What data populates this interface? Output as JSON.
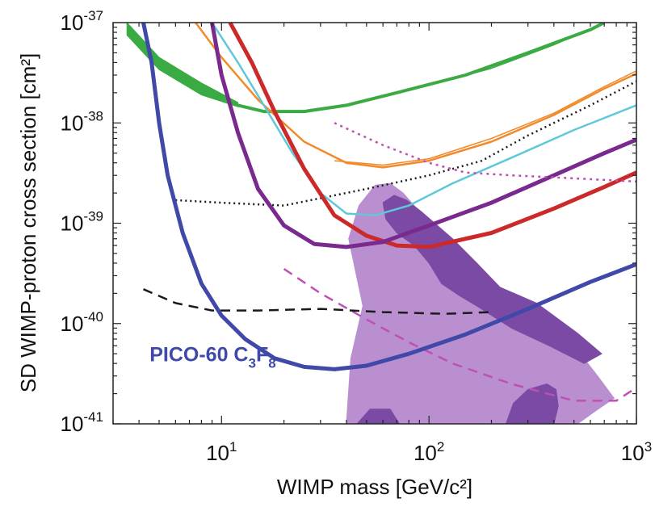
{
  "chart_data": {
    "type": "line",
    "x_scale": "log",
    "y_scale": "log",
    "xlim": [
      3,
      1000
    ],
    "ylim": [
      1e-41,
      1e-37
    ],
    "xlabel": "WIMP mass [GeV/c²]",
    "ylabel": "SD WIMP-proton cross section [cm²]",
    "x_ticks": [
      {
        "x": 10,
        "base": "10",
        "exp": "1"
      },
      {
        "x": 100,
        "base": "10",
        "exp": "2"
      },
      {
        "x": 1000,
        "base": "10",
        "exp": "3"
      }
    ],
    "y_ticks": [
      {
        "y": 1e-41,
        "base": "10",
        "exp": "-41"
      },
      {
        "y": 1e-40,
        "base": "10",
        "exp": "-40"
      },
      {
        "y": 1e-39,
        "base": "10",
        "exp": "-39"
      },
      {
        "y": 1e-38,
        "base": "10",
        "exp": "-38"
      },
      {
        "y": 1e-37,
        "base": "10",
        "exp": "-37"
      }
    ],
    "annotation": {
      "text": "PICO-60 C",
      "sub1": "3",
      "mid": "F",
      "sub2": "8",
      "color": "#4049a8",
      "x": 4.5,
      "y": 4.2e-41
    },
    "regions": [
      {
        "color": "#b98fd0",
        "points": [
          [
            40,
            1e-41
          ],
          [
            42,
            4.5e-41
          ],
          [
            48,
            1.5e-40
          ],
          [
            41,
            7e-40
          ],
          [
            46,
            1.5e-39
          ],
          [
            55,
            2.4e-39
          ],
          [
            65,
            2.5e-39
          ],
          [
            75,
            2e-39
          ],
          [
            90,
            1.3e-39
          ],
          [
            130,
            6e-40
          ],
          [
            160,
            3e-40
          ],
          [
            220,
            2e-40
          ],
          [
            350,
            1.1e-40
          ],
          [
            500,
            6e-41
          ],
          [
            650,
            3e-41
          ],
          [
            780,
            1.8e-41
          ],
          [
            620,
            1.3e-41
          ],
          [
            520,
            1e-41
          ]
        ]
      },
      {
        "color": "#7a4aa5",
        "points": [
          [
            60,
            1.6e-39
          ],
          [
            68,
            1.9e-39
          ],
          [
            78,
            1.7e-39
          ],
          [
            92,
            1.3e-39
          ],
          [
            130,
            7e-40
          ],
          [
            170,
            4e-40
          ],
          [
            220,
            2.3e-40
          ],
          [
            330,
            1.6e-40
          ],
          [
            520,
            8e-41
          ],
          [
            680,
            5e-41
          ],
          [
            560,
            4e-41
          ],
          [
            380,
            6e-41
          ],
          [
            250,
            9e-41
          ],
          [
            170,
            1.5e-40
          ],
          [
            140,
            1.9e-40
          ],
          [
            115,
            2.5e-40
          ],
          [
            100,
            4e-40
          ],
          [
            85,
            6e-40
          ],
          [
            70,
            8e-40
          ],
          [
            62,
            1.1e-39
          ]
        ]
      },
      {
        "color": "#7a4aa5",
        "points": [
          [
            235,
            1e-41
          ],
          [
            255,
            1.6e-41
          ],
          [
            300,
            2.2e-41
          ],
          [
            370,
            2.5e-41
          ],
          [
            410,
            2.2e-41
          ],
          [
            420,
            1.5e-41
          ],
          [
            400,
            1e-41
          ]
        ]
      },
      {
        "color": "#7a4aa5",
        "points": [
          [
            45,
            1e-41
          ],
          [
            52,
            1.4e-41
          ],
          [
            65,
            1.4e-41
          ],
          [
            72,
            1e-41
          ]
        ]
      }
    ],
    "bands": [
      {
        "color": "#3aaa42",
        "upper": [
          [
            3.5,
            1e-37
          ],
          [
            5,
            4.5e-38
          ],
          [
            8,
            2.5e-38
          ],
          [
            12,
            1.6e-38
          ]
        ],
        "lower": [
          [
            3.5,
            7.5e-38
          ],
          [
            5,
            3.4e-38
          ],
          [
            8,
            1.9e-38
          ],
          [
            12,
            1.45e-38
          ]
        ]
      }
    ],
    "series": [
      {
        "color": "#3aaa42",
        "width": 4,
        "dash": "",
        "points": [
          [
            12,
            1.5e-38
          ],
          [
            16,
            1.3e-38
          ],
          [
            25,
            1.3e-38
          ],
          [
            40,
            1.5e-38
          ],
          [
            70,
            2e-38
          ],
          [
            150,
            3e-38
          ],
          [
            300,
            5e-38
          ],
          [
            600,
            8.5e-38
          ],
          [
            700,
            1e-37
          ]
        ]
      },
      {
        "color": "#3aaa42",
        "width": 1.5,
        "dash": "",
        "points": [
          [
            110,
            2.5e-38
          ],
          [
            200,
            3.5e-38
          ],
          [
            400,
            6e-38
          ],
          [
            700,
            1e-37
          ]
        ]
      },
      {
        "color": "#f28a2a",
        "width": 2.5,
        "dash": "",
        "points": [
          [
            7.5,
            1e-37
          ],
          [
            10,
            4.5e-38
          ],
          [
            15,
            1.7e-38
          ],
          [
            25,
            6.5e-39
          ],
          [
            40,
            4e-39
          ],
          [
            60,
            3.6e-39
          ],
          [
            100,
            4.2e-39
          ],
          [
            200,
            6.5e-39
          ],
          [
            400,
            1.2e-38
          ],
          [
            700,
            2.2e-38
          ],
          [
            1000,
            3.1e-38
          ]
        ]
      },
      {
        "color": "#f28a2a",
        "width": 1.5,
        "dash": "",
        "points": [
          [
            35,
            4.2e-39
          ],
          [
            60,
            3.8e-39
          ],
          [
            100,
            4.4e-39
          ],
          [
            200,
            7e-39
          ],
          [
            400,
            1.25e-38
          ],
          [
            700,
            2.3e-38
          ],
          [
            1000,
            3.3e-38
          ]
        ]
      },
      {
        "color": "#1a1a1a",
        "width": 2.5,
        "dash": "2,4",
        "points": [
          [
            6,
            1.7e-39
          ],
          [
            10,
            1.6e-39
          ],
          [
            20,
            1.5e-39
          ],
          [
            50,
            2.2e-39
          ],
          [
            100,
            3e-39
          ],
          [
            180,
            4.2e-39
          ],
          [
            300,
            7.5e-39
          ],
          [
            600,
            1.5e-38
          ],
          [
            1000,
            2.6e-38
          ]
        ]
      },
      {
        "color": "#5fc8d8",
        "width": 2.5,
        "dash": "",
        "points": [
          [
            9,
            1e-37
          ],
          [
            12,
            4e-38
          ],
          [
            16,
            1.5e-38
          ],
          [
            22,
            5e-39
          ],
          [
            30,
            2e-39
          ],
          [
            40,
            1.25e-39
          ],
          [
            55,
            1.2e-39
          ],
          [
            80,
            1.5e-39
          ],
          [
            130,
            2.5e-39
          ],
          [
            250,
            4.5e-39
          ],
          [
            500,
            8.5e-39
          ],
          [
            1000,
            1.5e-38
          ]
        ]
      },
      {
        "color": "#cc2a2a",
        "width": 5,
        "dash": "",
        "points": [
          [
            11,
            1e-37
          ],
          [
            14,
            4e-38
          ],
          [
            18,
            1.3e-38
          ],
          [
            25,
            3.5e-39
          ],
          [
            35,
            1.2e-39
          ],
          [
            50,
            7.5e-40
          ],
          [
            70,
            6e-40
          ],
          [
            100,
            5.8e-40
          ],
          [
            200,
            8e-40
          ],
          [
            400,
            1.4e-39
          ],
          [
            700,
            2.3e-39
          ],
          [
            1000,
            3.2e-39
          ]
        ]
      },
      {
        "color": "#7a2a8e",
        "width": 5,
        "dash": "",
        "points": [
          [
            9,
            1e-37
          ],
          [
            10,
            3e-38
          ],
          [
            12,
            8e-39
          ],
          [
            15,
            2.2e-39
          ],
          [
            20,
            9.5e-40
          ],
          [
            28,
            6.2e-40
          ],
          [
            40,
            5.8e-40
          ],
          [
            60,
            6.5e-40
          ],
          [
            100,
            9.5e-40
          ],
          [
            200,
            1.6e-39
          ],
          [
            400,
            3e-39
          ],
          [
            700,
            5e-39
          ],
          [
            1000,
            6.8e-39
          ]
        ]
      },
      {
        "color": "#c04fb4",
        "width": 2.5,
        "dash": "3,5",
        "points": [
          [
            35,
            1e-38
          ],
          [
            60,
            6e-39
          ],
          [
            100,
            4e-39
          ],
          [
            150,
            3.2e-39
          ],
          [
            250,
            3e-39
          ],
          [
            500,
            2.8e-39
          ],
          [
            1000,
            2.6e-39
          ]
        ]
      },
      {
        "color": "#c04fb4",
        "width": 2.5,
        "dash": "12,8",
        "points": [
          [
            20,
            3.5e-40
          ],
          [
            30,
            2e-40
          ],
          [
            50,
            1.1e-40
          ],
          [
            80,
            6.5e-41
          ],
          [
            130,
            4e-41
          ],
          [
            250,
            2.5e-41
          ],
          [
            500,
            1.7e-41
          ],
          [
            800,
            1.7e-41
          ],
          [
            1000,
            2.3e-41
          ]
        ]
      },
      {
        "color": "#1a1a1a",
        "width": 2.5,
        "dash": "12,8",
        "points": [
          [
            4.2,
            2.2e-40
          ],
          [
            6,
            1.6e-40
          ],
          [
            9,
            1.35e-40
          ],
          [
            15,
            1.35e-40
          ],
          [
            30,
            1.4e-40
          ],
          [
            60,
            1.3e-40
          ],
          [
            120,
            1.25e-40
          ],
          [
            200,
            1.3e-40
          ]
        ]
      },
      {
        "color": "#4049a8",
        "width": 5,
        "dash": "",
        "points": [
          [
            4.2,
            1e-37
          ],
          [
            4.6,
            4e-38
          ],
          [
            5,
            1e-38
          ],
          [
            5.5,
            3e-39
          ],
          [
            6.5,
            8e-40
          ],
          [
            8,
            2.5e-40
          ],
          [
            10,
            1.2e-40
          ],
          [
            13,
            7e-41
          ],
          [
            18,
            4.5e-41
          ],
          [
            25,
            3.7e-41
          ],
          [
            35,
            3.5e-41
          ],
          [
            50,
            3.8e-41
          ],
          [
            80,
            5e-41
          ],
          [
            150,
            7.8e-41
          ],
          [
            300,
            1.4e-40
          ],
          [
            600,
            2.6e-40
          ],
          [
            1000,
            3.9e-40
          ]
        ]
      }
    ]
  }
}
